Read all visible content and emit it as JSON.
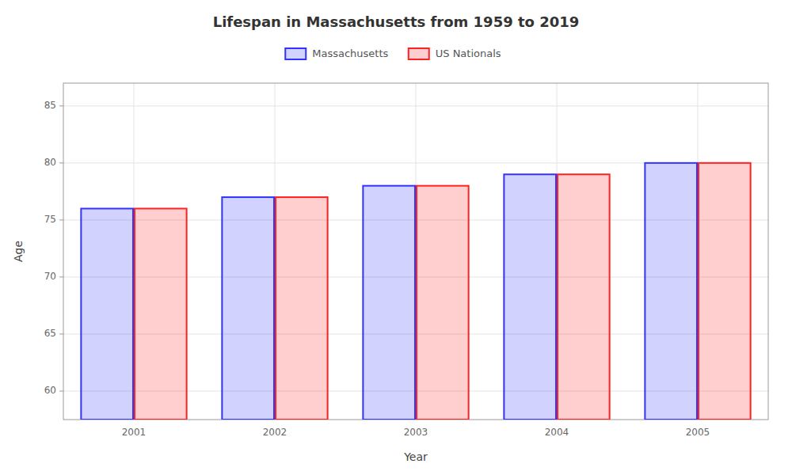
{
  "chart_data": {
    "type": "bar",
    "title": "Lifespan in Massachusetts from 1959 to 2019",
    "x_label": "Year",
    "y_label": "Age",
    "categories": [
      "2001",
      "2002",
      "2003",
      "2004",
      "2005"
    ],
    "series": [
      {
        "name": "Massachusetts",
        "color": "#3333ff",
        "values": [
          76,
          77,
          78,
          79,
          80
        ]
      },
      {
        "name": "US Nationals",
        "color": "#ff2222",
        "values": [
          76,
          77,
          78,
          79,
          80
        ]
      }
    ],
    "ylim": [
      57.5,
      87
    ],
    "yticks": [
      60,
      65,
      70,
      75,
      80,
      85
    ],
    "grid": true,
    "legend": "top"
  }
}
